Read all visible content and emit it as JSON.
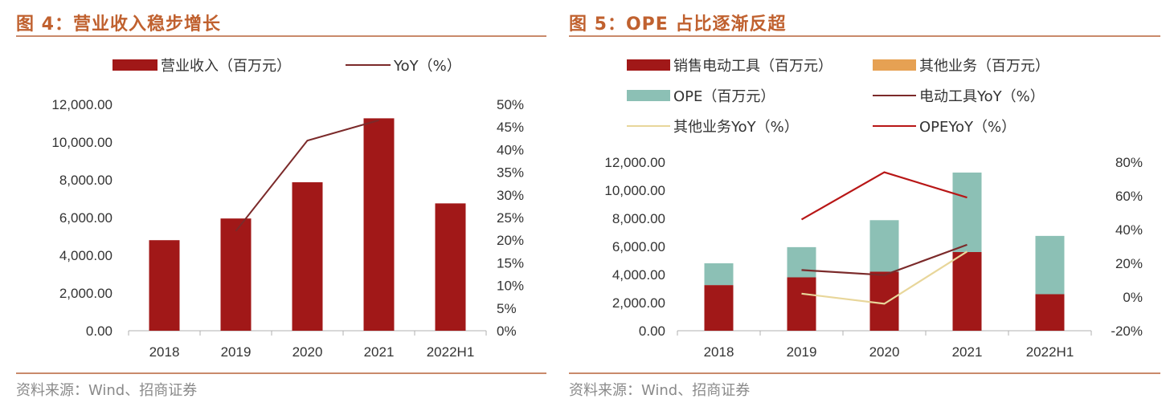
{
  "left": {
    "title": "图 4：营业收入稳步增长",
    "source": "资料来源：Wind、招商证券"
  },
  "right": {
    "title": "图 5：OPE 占比逐渐反超",
    "source": "资料来源：Wind、招商证券"
  },
  "colors": {
    "dark_red": "#a11818",
    "orange": "#e6a153",
    "teal": "#8cc0b5",
    "line_brown": "#7b2a2a",
    "line_yellow": "#e8d69a",
    "line_red": "#b81616",
    "title_orange": "#c0612f"
  },
  "chart_data": [
    {
      "type": "bar",
      "categories": [
        "2018",
        "2019",
        "2020",
        "2021",
        "2022H1"
      ],
      "series": [
        {
          "name": "营业收入（百万元）",
          "type": "bar",
          "axis": "left",
          "values": [
            4800,
            5950,
            7870,
            11260,
            6750
          ]
        },
        {
          "name": "YoY（%）",
          "type": "line",
          "axis": "right",
          "values": [
            null,
            22,
            42,
            46.5,
            null
          ]
        }
      ],
      "y_left": {
        "min": 0,
        "max": 12000,
        "step": 2000,
        "ticks": [
          "0.00",
          "2,000.00",
          "4,000.00",
          "6,000.00",
          "8,000.00",
          "10,000.00",
          "12,000.00"
        ]
      },
      "y_right": {
        "min": 0,
        "max": 50,
        "step": 5,
        "ticks": [
          "0%",
          "5%",
          "10%",
          "15%",
          "20%",
          "25%",
          "30%",
          "35%",
          "40%",
          "45%",
          "50%"
        ]
      },
      "legend": "top"
    },
    {
      "type": "bar",
      "stacked": true,
      "categories": [
        "2018",
        "2019",
        "2020",
        "2021",
        "2022H1"
      ],
      "series": [
        {
          "name": "销售电动工具（百万元）",
          "type": "bar",
          "axis": "left",
          "values": [
            3250,
            3800,
            4200,
            5600,
            2600
          ]
        },
        {
          "name": "其他业务（百万元）",
          "type": "bar",
          "axis": "left",
          "values": [
            0,
            0,
            0,
            0,
            0
          ]
        },
        {
          "name": "OPE（百万元）",
          "type": "bar",
          "axis": "left",
          "values": [
            1550,
            2150,
            3670,
            5660,
            4150
          ]
        },
        {
          "name": "电动工具YoY（%）",
          "type": "line",
          "axis": "right",
          "values": [
            null,
            16,
            13,
            31,
            null
          ]
        },
        {
          "name": "其他业务YoY（%）",
          "type": "line",
          "axis": "right",
          "values": [
            null,
            2,
            -4,
            27,
            null
          ]
        },
        {
          "name": "OPEYoY（%）",
          "type": "line",
          "axis": "right",
          "values": [
            null,
            46,
            74,
            59,
            null
          ]
        }
      ],
      "y_left": {
        "min": 0,
        "max": 12000,
        "step": 2000,
        "ticks": [
          "0.00",
          "2,000.00",
          "4,000.00",
          "6,000.00",
          "8,000.00",
          "10,000.00",
          "12,000.00"
        ]
      },
      "y_right": {
        "min": -20,
        "max": 80,
        "step": 20,
        "ticks": [
          "-20%",
          "0%",
          "20%",
          "40%",
          "60%",
          "80%"
        ]
      },
      "legend": "top"
    }
  ]
}
